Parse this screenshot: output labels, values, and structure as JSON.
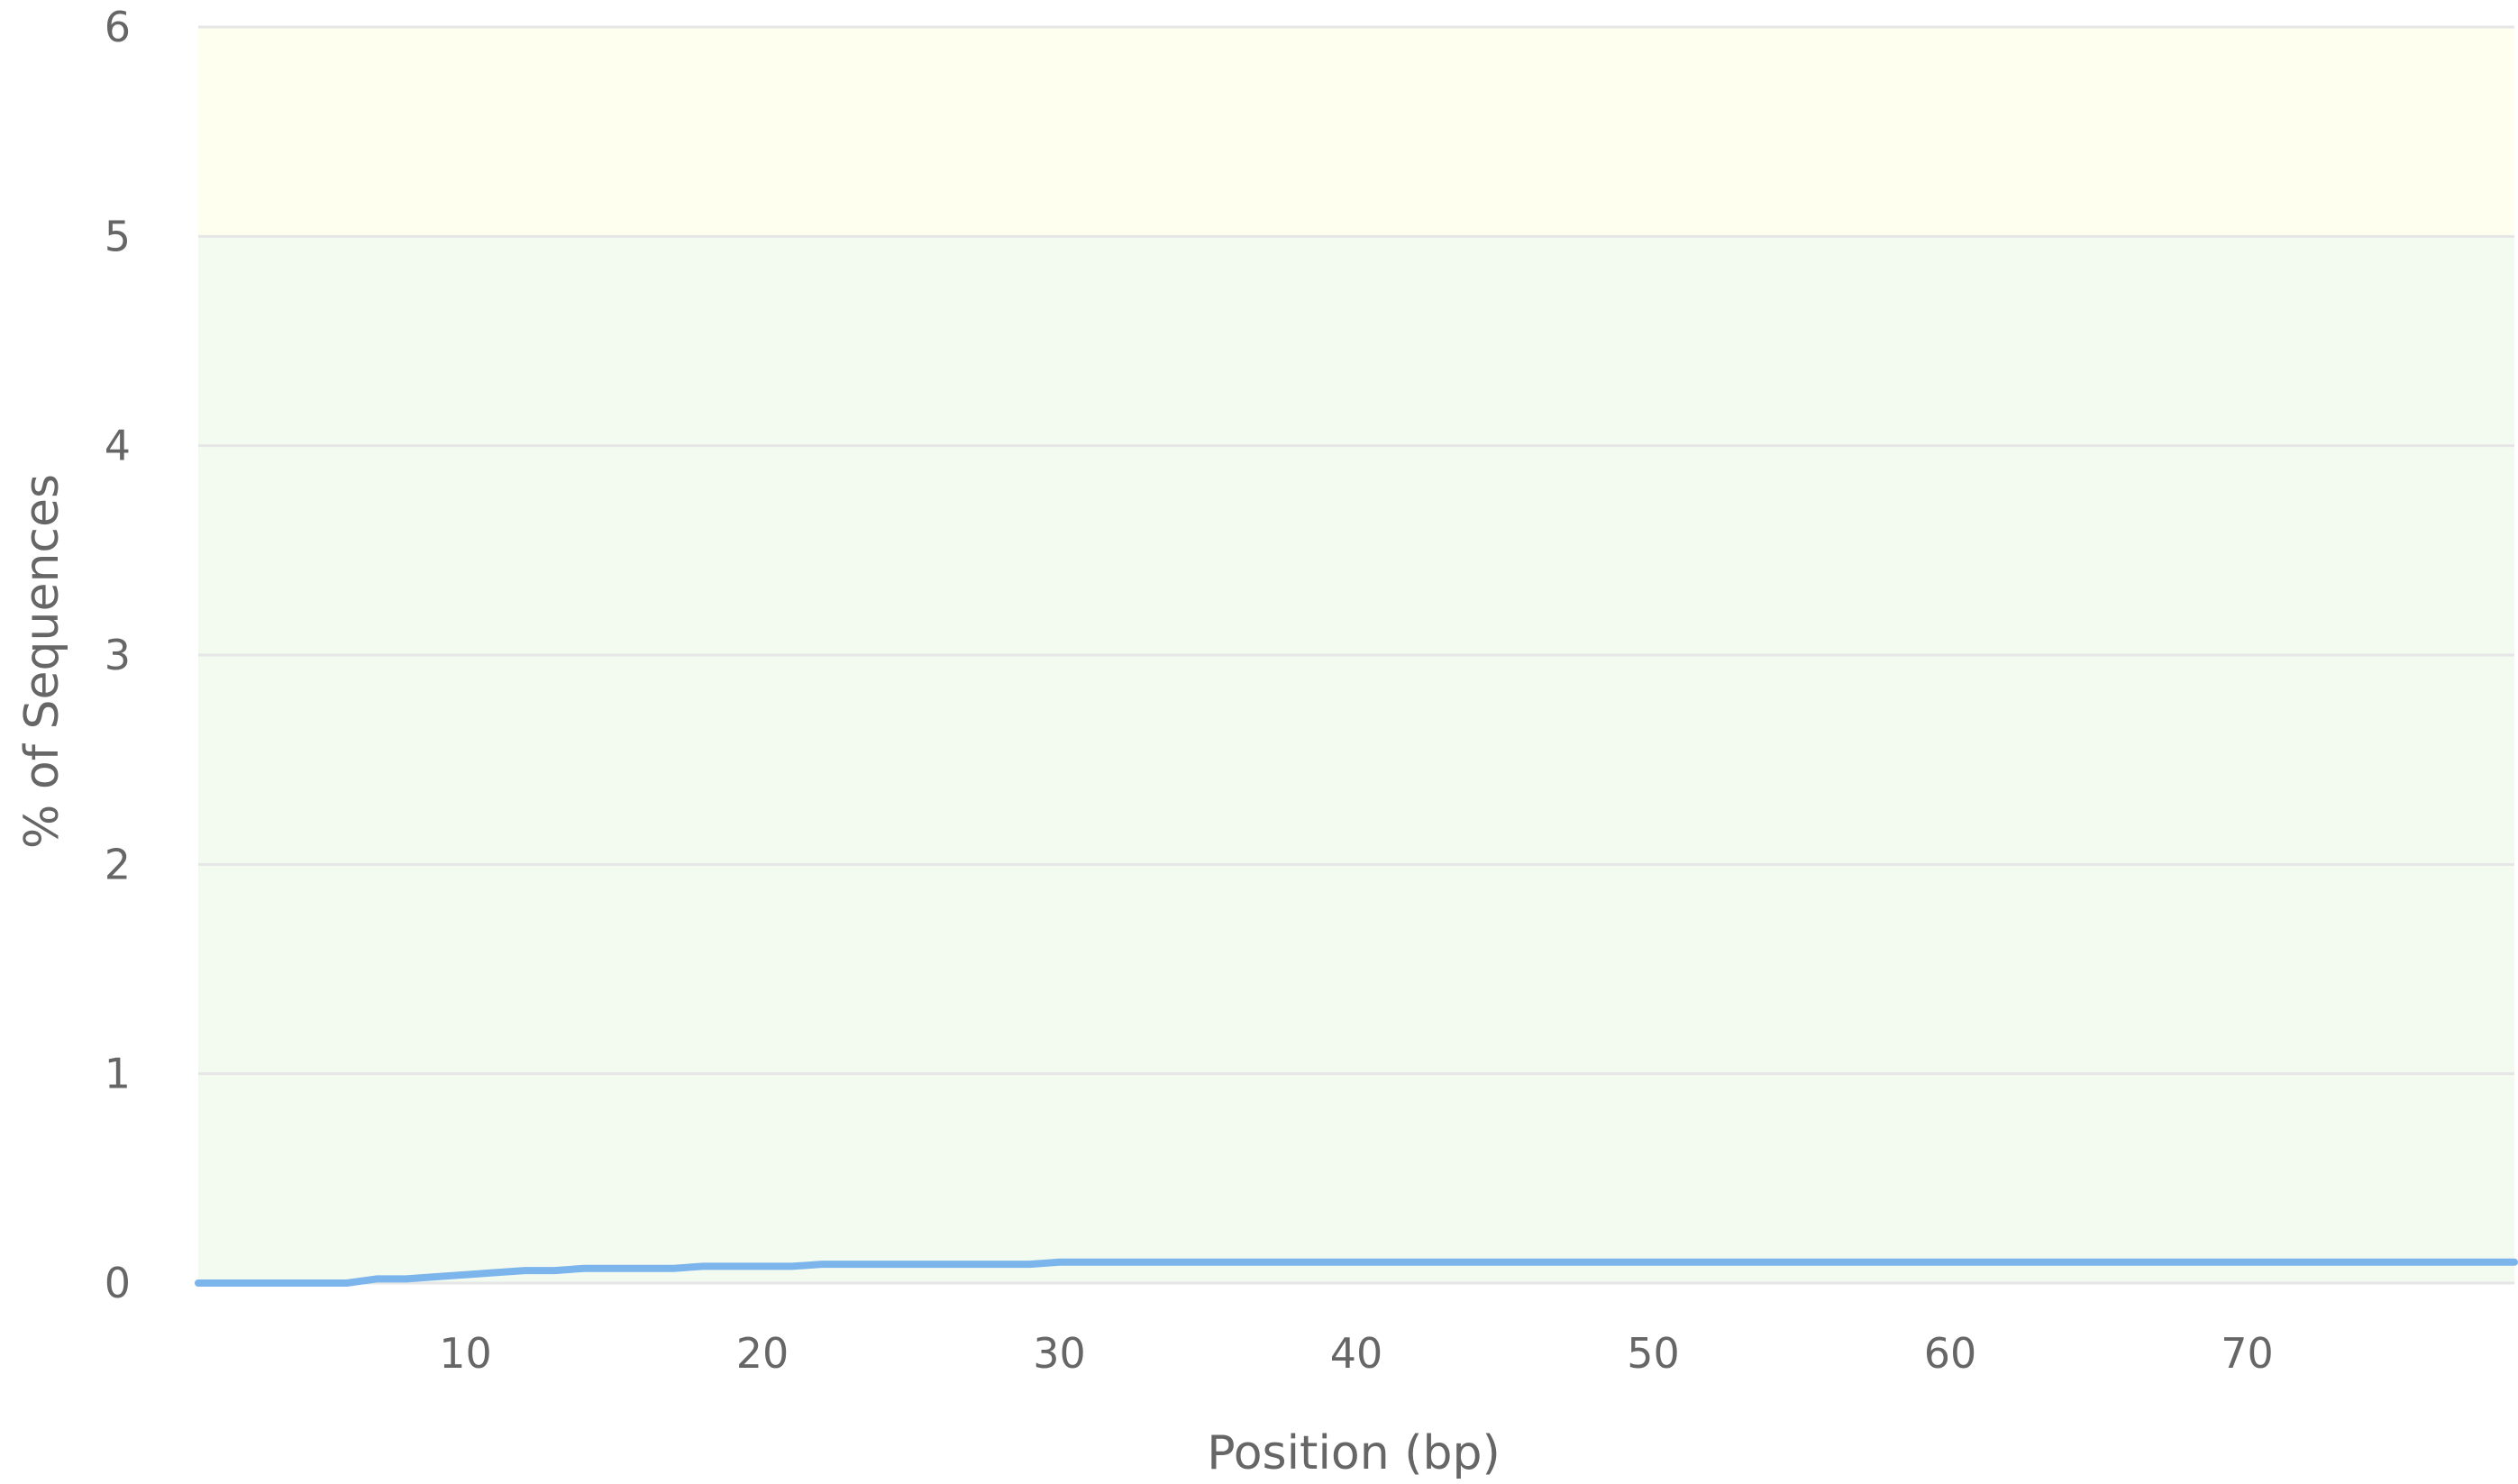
{
  "chart_data": {
    "type": "line",
    "title": "",
    "xlabel": "Position (bp)",
    "ylabel": "% of Sequences",
    "xlim": [
      1,
      79
    ],
    "ylim": [
      0,
      6
    ],
    "x_ticks": [
      10,
      20,
      30,
      40,
      50,
      60,
      70
    ],
    "y_ticks": [
      0,
      1,
      2,
      3,
      4,
      5,
      6
    ],
    "grid": true,
    "bands": [
      {
        "from": 0,
        "to": 5,
        "color": "#f3fbf1"
      },
      {
        "from": 5,
        "to": 6,
        "color": "#fffff0"
      }
    ],
    "series": [
      {
        "color": "#7cb5ec",
        "x": [
          1,
          2,
          3,
          4,
          5,
          6,
          7,
          8,
          9,
          10,
          11,
          12,
          13,
          14,
          15,
          16,
          17,
          18,
          19,
          20,
          21,
          22,
          23,
          24,
          25,
          26,
          27,
          28,
          29,
          30,
          31,
          32,
          33,
          34,
          35,
          36,
          37,
          38,
          39,
          40,
          41,
          42,
          43,
          44,
          45,
          46,
          47,
          48,
          49,
          50,
          51,
          52,
          53,
          54,
          55,
          56,
          57,
          58,
          59,
          60,
          61,
          62,
          63,
          64,
          65,
          66,
          67,
          68,
          69,
          70,
          71,
          72,
          73,
          74,
          75,
          76,
          77,
          78,
          79
        ],
        "values": [
          0.0,
          0.0,
          0.0,
          0.0,
          0.0,
          0.0,
          0.02,
          0.02,
          0.03,
          0.04,
          0.05,
          0.06,
          0.06,
          0.07,
          0.07,
          0.07,
          0.07,
          0.08,
          0.08,
          0.08,
          0.08,
          0.09,
          0.09,
          0.09,
          0.09,
          0.09,
          0.09,
          0.09,
          0.09,
          0.1,
          0.1,
          0.1,
          0.1,
          0.1,
          0.1,
          0.1,
          0.1,
          0.1,
          0.1,
          0.1,
          0.1,
          0.1,
          0.1,
          0.1,
          0.1,
          0.1,
          0.1,
          0.1,
          0.1,
          0.1,
          0.1,
          0.1,
          0.1,
          0.1,
          0.1,
          0.1,
          0.1,
          0.1,
          0.1,
          0.1,
          0.1,
          0.1,
          0.1,
          0.1,
          0.1,
          0.1,
          0.1,
          0.1,
          0.1,
          0.1,
          0.1,
          0.1,
          0.1,
          0.1,
          0.1,
          0.1,
          0.1,
          0.1,
          0.1
        ]
      }
    ]
  },
  "colors": {
    "gridline": "#e6e6e6",
    "series_line": "#7cb5ec",
    "text": "#666666"
  }
}
